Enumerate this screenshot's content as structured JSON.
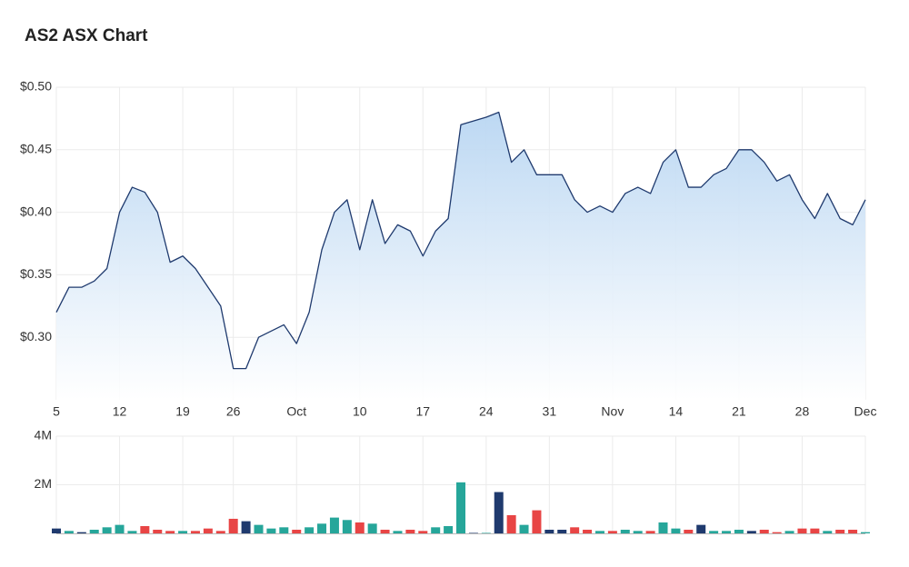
{
  "chart_data": [
    {
      "type": "area",
      "title": "AS2 ASX Chart",
      "categories": [
        "5",
        null,
        null,
        null,
        null,
        "12",
        null,
        null,
        null,
        null,
        "19",
        null,
        null,
        null,
        "26",
        null,
        null,
        null,
        null,
        "Oct",
        null,
        null,
        null,
        null,
        "10",
        null,
        null,
        null,
        null,
        "17",
        null,
        null,
        null,
        null,
        "24",
        null,
        null,
        null,
        null,
        "31",
        null,
        null,
        null,
        null,
        "Nov",
        null,
        null,
        null,
        null,
        "14",
        null,
        null,
        null,
        null,
        "21",
        null,
        null,
        null,
        null,
        "28",
        null,
        null,
        null,
        null,
        "Dec"
      ],
      "values": [
        0.32,
        0.34,
        0.34,
        0.345,
        0.355,
        0.4,
        0.42,
        0.416,
        0.4,
        0.36,
        0.365,
        0.355,
        0.34,
        0.325,
        0.275,
        0.275,
        0.3,
        0.305,
        0.31,
        0.295,
        0.32,
        0.37,
        0.4,
        0.41,
        0.37,
        0.41,
        0.375,
        0.39,
        0.385,
        0.365,
        0.385,
        0.395,
        0.47,
        0.473,
        0.476,
        0.48,
        0.44,
        0.45,
        0.43,
        0.43,
        0.43,
        0.41,
        0.4,
        0.405,
        0.4,
        0.415,
        0.42,
        0.415,
        0.44,
        0.45,
        0.42,
        0.42,
        0.43,
        0.435,
        0.45,
        0.45,
        0.44,
        0.425,
        0.43,
        0.41,
        0.395,
        0.415,
        0.395,
        0.39,
        0.41
      ],
      "color": "#1f3a6e",
      "fill": "#b9d6f2",
      "ylim": [
        0.25,
        0.5
      ],
      "yticks": [
        {
          "value": 0.3,
          "label": "$0.30"
        },
        {
          "value": 0.35,
          "label": "$0.35"
        },
        {
          "value": 0.4,
          "label": "$0.40"
        },
        {
          "value": 0.45,
          "label": "$0.45"
        },
        {
          "value": 0.5,
          "label": "$0.50"
        }
      ],
      "grid": true
    },
    {
      "type": "bar",
      "values": [
        200000,
        100000,
        50000,
        150000,
        250000,
        350000,
        100000,
        300000,
        150000,
        100000,
        100000,
        100000,
        200000,
        100000,
        600000,
        500000,
        350000,
        200000,
        250000,
        150000,
        250000,
        400000,
        650000,
        550000,
        450000,
        400000,
        150000,
        100000,
        150000,
        100000,
        250000,
        300000,
        2100000,
        20000,
        20000,
        1700000,
        750000,
        350000,
        950000,
        150000,
        150000,
        250000,
        150000,
        100000,
        100000,
        150000,
        100000,
        100000,
        450000,
        200000,
        150000,
        350000,
        100000,
        100000,
        150000,
        100000,
        150000,
        50000,
        100000,
        200000,
        200000,
        100000,
        150000,
        150000,
        50000
      ],
      "colors": [
        "#1f3a6e",
        "#26a69a",
        "#1f3a6e",
        "#26a69a",
        "#26a69a",
        "#26a69a",
        "#26a69a",
        "#e84545",
        "#e84545",
        "#e84545",
        "#26a69a",
        "#e84545",
        "#e84545",
        "#e84545",
        "#e84545",
        "#1f3a6e",
        "#26a69a",
        "#26a69a",
        "#26a69a",
        "#e84545",
        "#26a69a",
        "#26a69a",
        "#26a69a",
        "#26a69a",
        "#e84545",
        "#26a69a",
        "#e84545",
        "#26a69a",
        "#e84545",
        "#e84545",
        "#26a69a",
        "#26a69a",
        "#26a69a",
        "#1f3a6e",
        "#26a69a",
        "#1f3a6e",
        "#e84545",
        "#26a69a",
        "#e84545",
        "#1f3a6e",
        "#1f3a6e",
        "#e84545",
        "#e84545",
        "#26a69a",
        "#e84545",
        "#26a69a",
        "#26a69a",
        "#e84545",
        "#26a69a",
        "#26a69a",
        "#e84545",
        "#1f3a6e",
        "#26a69a",
        "#26a69a",
        "#26a69a",
        "#1f3a6e",
        "#e84545",
        "#e84545",
        "#26a69a",
        "#e84545",
        "#e84545",
        "#26a69a",
        "#e84545",
        "#e84545",
        "#26a69a"
      ],
      "ylim": [
        0,
        4000000
      ],
      "yticks": [
        {
          "value": 2000000,
          "label": "2M"
        },
        {
          "value": 4000000,
          "label": "4M"
        }
      ],
      "grid": true
    }
  ]
}
